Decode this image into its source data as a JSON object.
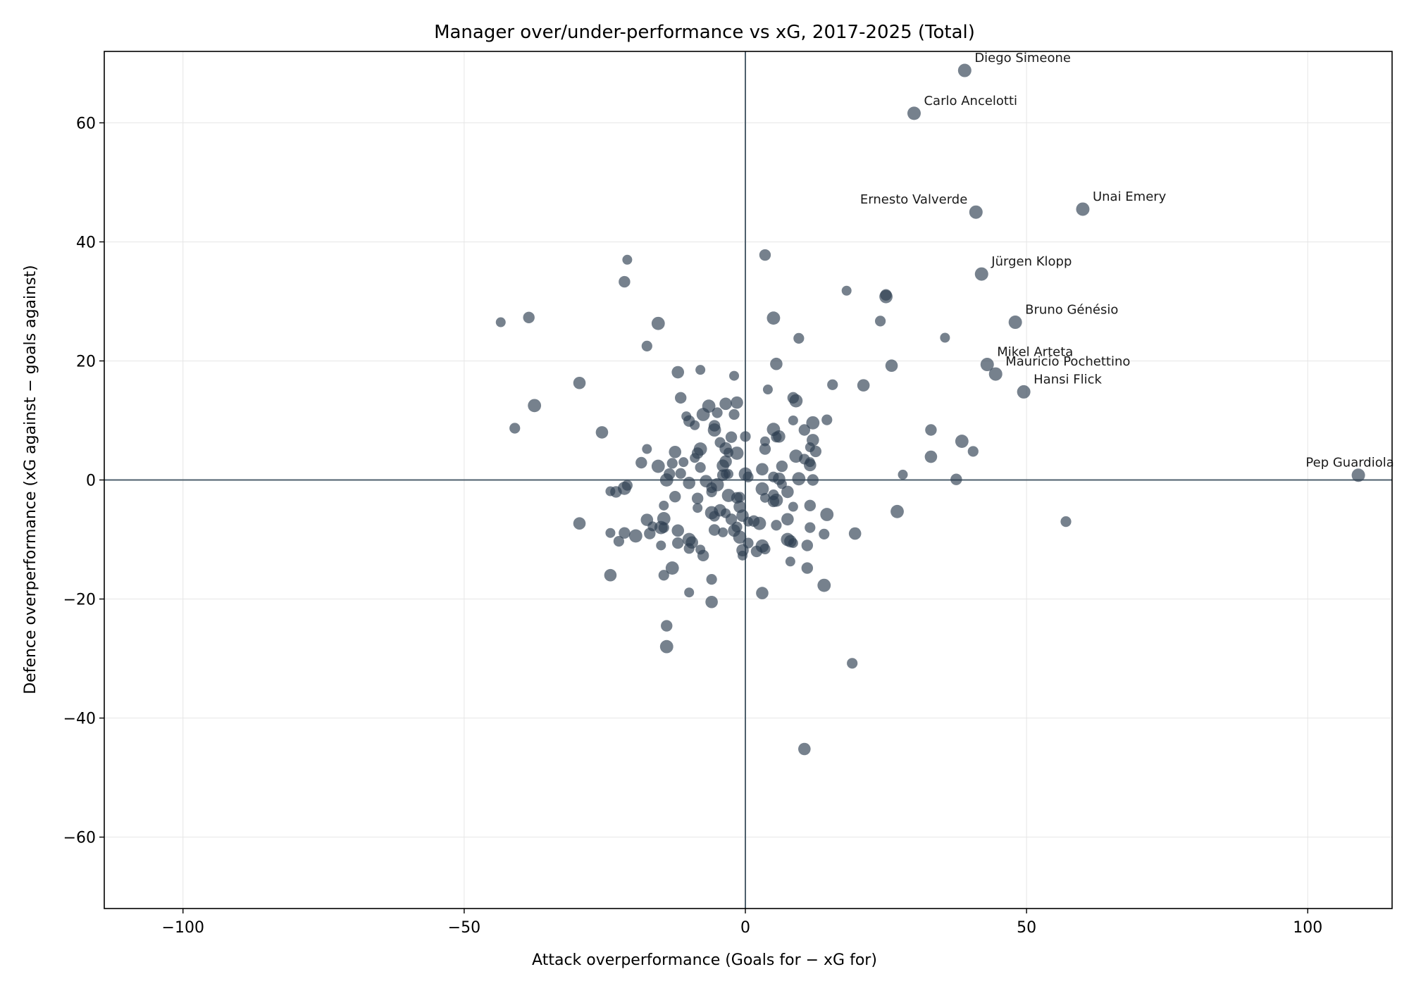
{
  "chart_data": {
    "type": "scatter",
    "title": "Manager over/under-performance vs xG, 2017-2025 (Total)",
    "xlabel": "Attack overperformance (Goals for − xG for)",
    "ylabel": "Defence overperformance (xG against − goals against)",
    "xlim": [
      -114,
      115
    ],
    "ylim": [
      -72,
      72
    ],
    "xticks": [
      -100,
      -50,
      0,
      50,
      100
    ],
    "xtick_labels": [
      "−100",
      "−50",
      "0",
      "50",
      "100"
    ],
    "yticks": [
      -60,
      -40,
      -20,
      0,
      20,
      40,
      60
    ],
    "ytick_labels": [
      "−60",
      "−40",
      "−20",
      "0",
      "20",
      "40",
      "60"
    ],
    "grid": true,
    "reference_lines": {
      "x": 0,
      "y": 0
    },
    "colors": {
      "point": "#2c3e50",
      "ref_line": "#4e5f6c",
      "grid": "#e6e6e6",
      "frame": "#000000"
    },
    "labeled_points": [
      {
        "name": "Diego Simeone",
        "x": 39,
        "y": 68.8
      },
      {
        "name": "Carlo Ancelotti",
        "x": 30,
        "y": 61.6
      },
      {
        "name": "Ernesto Valverde",
        "x": 41,
        "y": 45
      },
      {
        "name": "Unai Emery",
        "x": 60,
        "y": 45.5
      },
      {
        "name": "Jürgen Klopp",
        "x": 42,
        "y": 34.6
      },
      {
        "name": "Bruno Génésio",
        "x": 48,
        "y": 26.5
      },
      {
        "name": "Mikel Arteta",
        "x": 43,
        "y": 19.4
      },
      {
        "name": "Mauricio Pochettino",
        "x": 44.5,
        "y": 17.8
      },
      {
        "name": "Hansi Flick",
        "x": 49.5,
        "y": 14.8
      },
      {
        "name": "Pep Guardiola",
        "x": 109,
        "y": 0.8
      }
    ],
    "points": [
      [
        -43.5,
        26.5
      ],
      [
        -38.5,
        27.3
      ],
      [
        -37.5,
        12.5
      ],
      [
        -41,
        8.7
      ],
      [
        -29.5,
        16.3
      ],
      [
        -21,
        37
      ],
      [
        -21.5,
        33.3
      ],
      [
        -15.5,
        26.3
      ],
      [
        -17.5,
        22.5
      ],
      [
        -12,
        18.1
      ],
      [
        -8,
        18.5
      ],
      [
        -11.5,
        13.8
      ],
      [
        -6.5,
        12.4
      ],
      [
        -5,
        11.3
      ],
      [
        -3.5,
        12.8
      ],
      [
        -10.5,
        10.7
      ],
      [
        -10,
        9.9
      ],
      [
        -7.5,
        11
      ],
      [
        -2,
        11
      ],
      [
        -1.5,
        13
      ],
      [
        -2,
        17.5
      ],
      [
        3.5,
        37.8
      ],
      [
        5,
        27.2
      ],
      [
        9.5,
        23.8
      ],
      [
        5.5,
        19.5
      ],
      [
        4,
        15.2
      ],
      [
        8.5,
        13.8
      ],
      [
        9,
        13.3
      ],
      [
        15.5,
        16
      ],
      [
        21,
        15.9
      ],
      [
        18,
        31.8
      ],
      [
        25,
        31.1
      ],
      [
        25,
        30.8
      ],
      [
        24,
        26.7
      ],
      [
        26,
        19.2
      ],
      [
        35.5,
        23.9
      ],
      [
        33,
        8.4
      ],
      [
        38.5,
        6.5
      ],
      [
        40.5,
        4.8
      ],
      [
        33,
        3.9
      ],
      [
        28,
        0.9
      ],
      [
        37.5,
        0.1
      ],
      [
        27,
        -5.3
      ],
      [
        57,
        -7
      ],
      [
        -25.5,
        8
      ],
      [
        -17.5,
        5.2
      ],
      [
        -18.5,
        2.9
      ],
      [
        -15.5,
        2.3
      ],
      [
        -13,
        2.8
      ],
      [
        -12.5,
        4.7
      ],
      [
        -11,
        3
      ],
      [
        -13.5,
        1
      ],
      [
        -14,
        0
      ],
      [
        -11.5,
        1.1
      ],
      [
        -10,
        -0.5
      ],
      [
        -9,
        3.7
      ],
      [
        -8.5,
        4.5
      ],
      [
        -8,
        5.2
      ],
      [
        -8,
        2.1
      ],
      [
        -7,
        -0.2
      ],
      [
        -9,
        9.2
      ],
      [
        -5.5,
        9.1
      ],
      [
        -5.5,
        8.4
      ],
      [
        -4.5,
        6.3
      ],
      [
        -3.5,
        5.3
      ],
      [
        -3,
        4.6
      ],
      [
        -2.5,
        7.2
      ],
      [
        -1.5,
        4.5
      ],
      [
        0,
        7.3
      ],
      [
        -4,
        2.4
      ],
      [
        -3.5,
        1
      ],
      [
        -4,
        0.8
      ],
      [
        -5,
        -0.8
      ],
      [
        -6,
        -1.3
      ],
      [
        -3.5,
        3.1
      ],
      [
        -3,
        1
      ],
      [
        -1.5,
        -3
      ],
      [
        0,
        1
      ],
      [
        0.5,
        0.5
      ],
      [
        3,
        1.8
      ],
      [
        3.5,
        6.5
      ],
      [
        3.5,
        5.2
      ],
      [
        5,
        8.5
      ],
      [
        5.5,
        7.2
      ],
      [
        6,
        7.3
      ],
      [
        8.5,
        10
      ],
      [
        10.5,
        8.4
      ],
      [
        12,
        9.6
      ],
      [
        14.5,
        10.1
      ],
      [
        12,
        6.7
      ],
      [
        11.5,
        5.5
      ],
      [
        12.5,
        4.8
      ],
      [
        9,
        4
      ],
      [
        10.5,
        3.5
      ],
      [
        11.5,
        2.5
      ],
      [
        11.5,
        3
      ],
      [
        12,
        0
      ],
      [
        9.5,
        0.2
      ],
      [
        5,
        0.5
      ],
      [
        6,
        0.2
      ],
      [
        6.5,
        -0.7
      ],
      [
        6.5,
        2.3
      ],
      [
        3,
        -1.5
      ],
      [
        5,
        -2.5
      ],
      [
        7.5,
        -2
      ],
      [
        3.5,
        -3
      ],
      [
        5,
        -3.6
      ],
      [
        5.5,
        -3.4
      ],
      [
        5.5,
        -7.6
      ],
      [
        7.5,
        -6.6
      ],
      [
        8.5,
        -4.5
      ],
      [
        11.5,
        -4.3
      ],
      [
        14.5,
        -5.8
      ],
      [
        11.5,
        -8
      ],
      [
        8,
        -10.3
      ],
      [
        8.5,
        -10.6
      ],
      [
        11,
        -11
      ],
      [
        7.5,
        -10
      ],
      [
        14,
        -9.1
      ],
      [
        19.5,
        -9
      ],
      [
        8,
        -13.7
      ],
      [
        11,
        -14.8
      ],
      [
        14,
        -17.7
      ],
      [
        19,
        -30.8
      ],
      [
        10.5,
        -45.2
      ],
      [
        -24,
        -1.9
      ],
      [
        -23,
        -2
      ],
      [
        -21.5,
        -1.4
      ],
      [
        -21,
        -0.9
      ],
      [
        -29.5,
        -7.3
      ],
      [
        -24,
        -8.9
      ],
      [
        -21.5,
        -8.9
      ],
      [
        -19.5,
        -9.4
      ],
      [
        -22.5,
        -10.3
      ],
      [
        -17.5,
        -6.7
      ],
      [
        -16.5,
        -7.8
      ],
      [
        -17,
        -9
      ],
      [
        -14.5,
        -6.5
      ],
      [
        -14.5,
        -8
      ],
      [
        -12,
        -8.5
      ],
      [
        -15,
        -11
      ],
      [
        -12,
        -10.6
      ],
      [
        -10,
        -10
      ],
      [
        -10,
        -11.5
      ],
      [
        -9.5,
        -10.5
      ],
      [
        -8,
        -11.7
      ],
      [
        -7.5,
        -12.7
      ],
      [
        -13,
        -14.8
      ],
      [
        -14.5,
        -16
      ],
      [
        -24,
        -16
      ],
      [
        -10,
        -18.9
      ],
      [
        -14,
        -24.5
      ],
      [
        -14,
        -28
      ],
      [
        -6,
        -16.7
      ],
      [
        -6,
        -20.5
      ],
      [
        -8.5,
        -4.7
      ],
      [
        -8.5,
        -3.1
      ],
      [
        -6,
        -5.5
      ],
      [
        -5.5,
        -6.1
      ],
      [
        -4.5,
        -5.1
      ],
      [
        -3.5,
        -5.6
      ],
      [
        -2.5,
        -6.6
      ],
      [
        -3,
        -2.6
      ],
      [
        -1,
        -2.9
      ],
      [
        -0.5,
        -6
      ],
      [
        0.5,
        -7
      ],
      [
        1.5,
        -6.9
      ],
      [
        2.5,
        -7.3
      ],
      [
        -1.5,
        -7.9
      ],
      [
        -2,
        -8.5
      ],
      [
        -4,
        -8.8
      ],
      [
        -5.5,
        -8.4
      ],
      [
        -1,
        -9.6
      ],
      [
        0.5,
        -10.6
      ],
      [
        -0.5,
        -11.8
      ],
      [
        -0.5,
        -12.7
      ],
      [
        2,
        -12
      ],
      [
        3,
        -11.1
      ],
      [
        3.5,
        -11.6
      ],
      [
        3,
        -19
      ],
      [
        -14.5,
        -4.3
      ],
      [
        -12.5,
        -2.8
      ],
      [
        -15,
        -8
      ],
      [
        -6,
        -2
      ],
      [
        -1,
        -4.5
      ]
    ]
  }
}
